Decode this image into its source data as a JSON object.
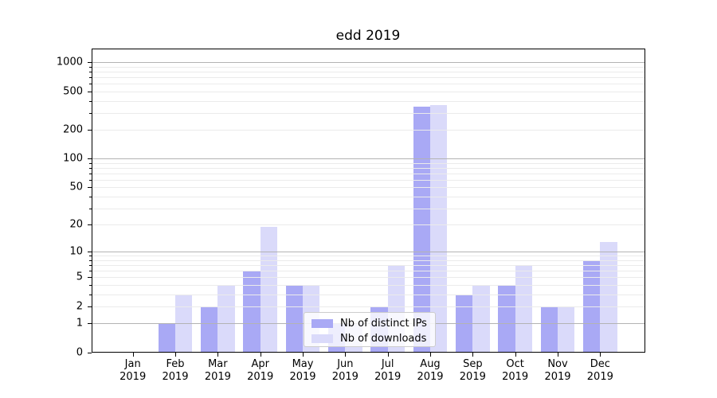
{
  "chart_data": {
    "type": "bar",
    "title": "edd 2019",
    "categories": [
      [
        "Jan",
        "2019"
      ],
      [
        "Feb",
        "2019"
      ],
      [
        "Mar",
        "2019"
      ],
      [
        "Apr",
        "2019"
      ],
      [
        "May",
        "2019"
      ],
      [
        "Jun",
        "2019"
      ],
      [
        "Jul",
        "2019"
      ],
      [
        "Aug",
        "2019"
      ],
      [
        "Sep",
        "2019"
      ],
      [
        "Oct",
        "2019"
      ],
      [
        "Nov",
        "2019"
      ],
      [
        "Dec",
        "2019"
      ]
    ],
    "series": [
      {
        "name": "Nb of distinct IPs",
        "color": "#a9a9f5",
        "values": [
          0,
          1,
          2,
          6,
          4,
          1,
          2,
          348,
          3,
          4,
          2,
          8
        ]
      },
      {
        "name": "Nb of downloads",
        "color": "#dadafa",
        "values": [
          0,
          3,
          4,
          19,
          4,
          1,
          7,
          364,
          4,
          7,
          2,
          13
        ]
      }
    ],
    "yscale": "log1p",
    "ylim": [
      0,
      1390
    ],
    "y_tick_labels": [
      0,
      1,
      2,
      5,
      10,
      20,
      50,
      100,
      200,
      500,
      1000
    ],
    "y_major_gridlines": [
      1,
      10,
      100,
      1000
    ],
    "y_minor_gridlines": [
      2,
      3,
      4,
      5,
      6,
      7,
      8,
      9,
      20,
      30,
      40,
      50,
      60,
      70,
      80,
      90,
      200,
      300,
      400,
      500,
      600,
      700,
      800,
      900
    ],
    "grid": "on",
    "legend": {
      "position": "lower center"
    },
    "colors": {
      "major_grid": "#b3b3b3",
      "minor_grid": "#ebebeb",
      "spine": "#000000",
      "text": "#000000",
      "background": "#ffffff"
    }
  }
}
